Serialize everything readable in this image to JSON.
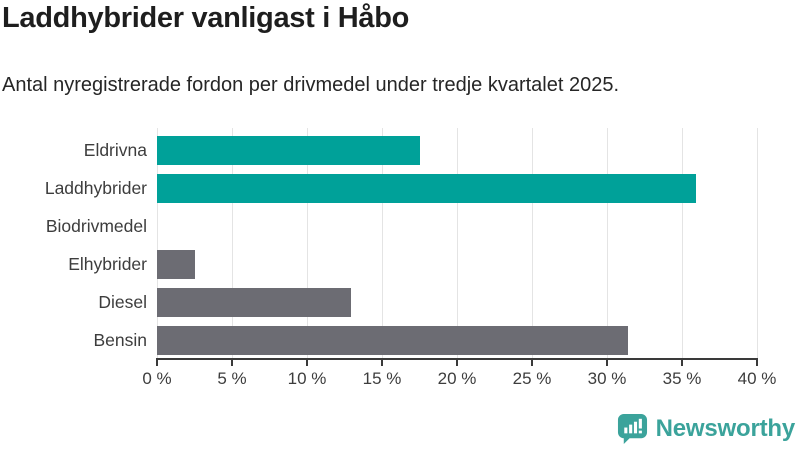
{
  "header": {
    "title": "Laddhybrider vanligast i Håbo",
    "subtitle": "Antal nyregistrerade fordon per drivmedel under tredje kvartalet 2025."
  },
  "chart_data": {
    "type": "bar",
    "orientation": "horizontal",
    "title": "Laddhybrider vanligast i Håbo",
    "subtitle": "Antal nyregistrerade fordon per drivmedel under tredje kvartalet 2025.",
    "categories": [
      "Eldrivna",
      "Laddhybrider",
      "Biodrivmedel",
      "Elhybrider",
      "Diesel",
      "Bensin"
    ],
    "values": [
      17.5,
      35.9,
      0,
      2.5,
      12.9,
      31.4
    ],
    "unit": "%",
    "xlabel": "",
    "ylabel": "",
    "xlim": [
      0,
      40
    ],
    "x_ticks": [
      0,
      5,
      10,
      15,
      20,
      25,
      30,
      35,
      40
    ],
    "x_tick_labels": [
      "0 %",
      "5 %",
      "10 %",
      "15 %",
      "20 %",
      "25 %",
      "30 %",
      "35 %",
      "40 %"
    ],
    "grid": true,
    "legend": "none",
    "bar_colors": [
      "#00A199",
      "#00A199",
      "#6C6C73",
      "#6C6C73",
      "#6C6C73",
      "#6C6C73"
    ],
    "highlight_color": "#00A199",
    "default_color": "#6C6C73"
  },
  "footer": {
    "brand": "Newsworthy",
    "brand_color": "#3BA39B",
    "logo_icon": "newsworthy-chart-bubble-icon"
  }
}
